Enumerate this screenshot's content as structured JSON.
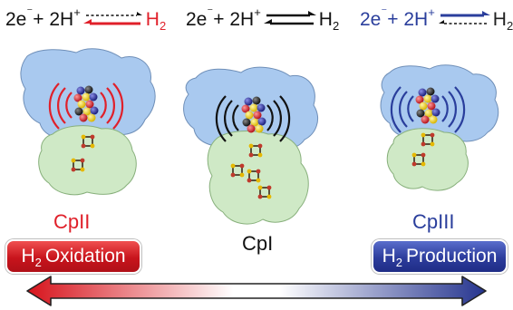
{
  "equations": {
    "left": {
      "lhs": "2e",
      "charge": "⁻",
      "plus1": " + 2H",
      "proton": "+",
      "rhs": "H",
      "sub": "2"
    },
    "mid": {
      "lhs": "2e",
      "charge": "⁻",
      "plus1": " + 2H",
      "proton": "+",
      "rhs": "H",
      "sub": "2"
    },
    "right": {
      "lhs": "2e",
      "charge": "⁻",
      "plus1": " + 2H",
      "proton": "+",
      "rhs": "H",
      "sub": "2"
    }
  },
  "enzymes": {
    "cpii": "CpII",
    "cpi": "CpI",
    "cpiii": "CpIII"
  },
  "badges": {
    "oxidation": {
      "h": "H",
      "sub": "2",
      "text": "Oxidation"
    },
    "production": {
      "h": "H",
      "sub": "2",
      "text": "Production"
    }
  },
  "colors": {
    "red": "#e0202a",
    "blue": "#2a3e9c",
    "protein_blue": "#a9c9ef",
    "protein_green": "#cfe9c6"
  }
}
